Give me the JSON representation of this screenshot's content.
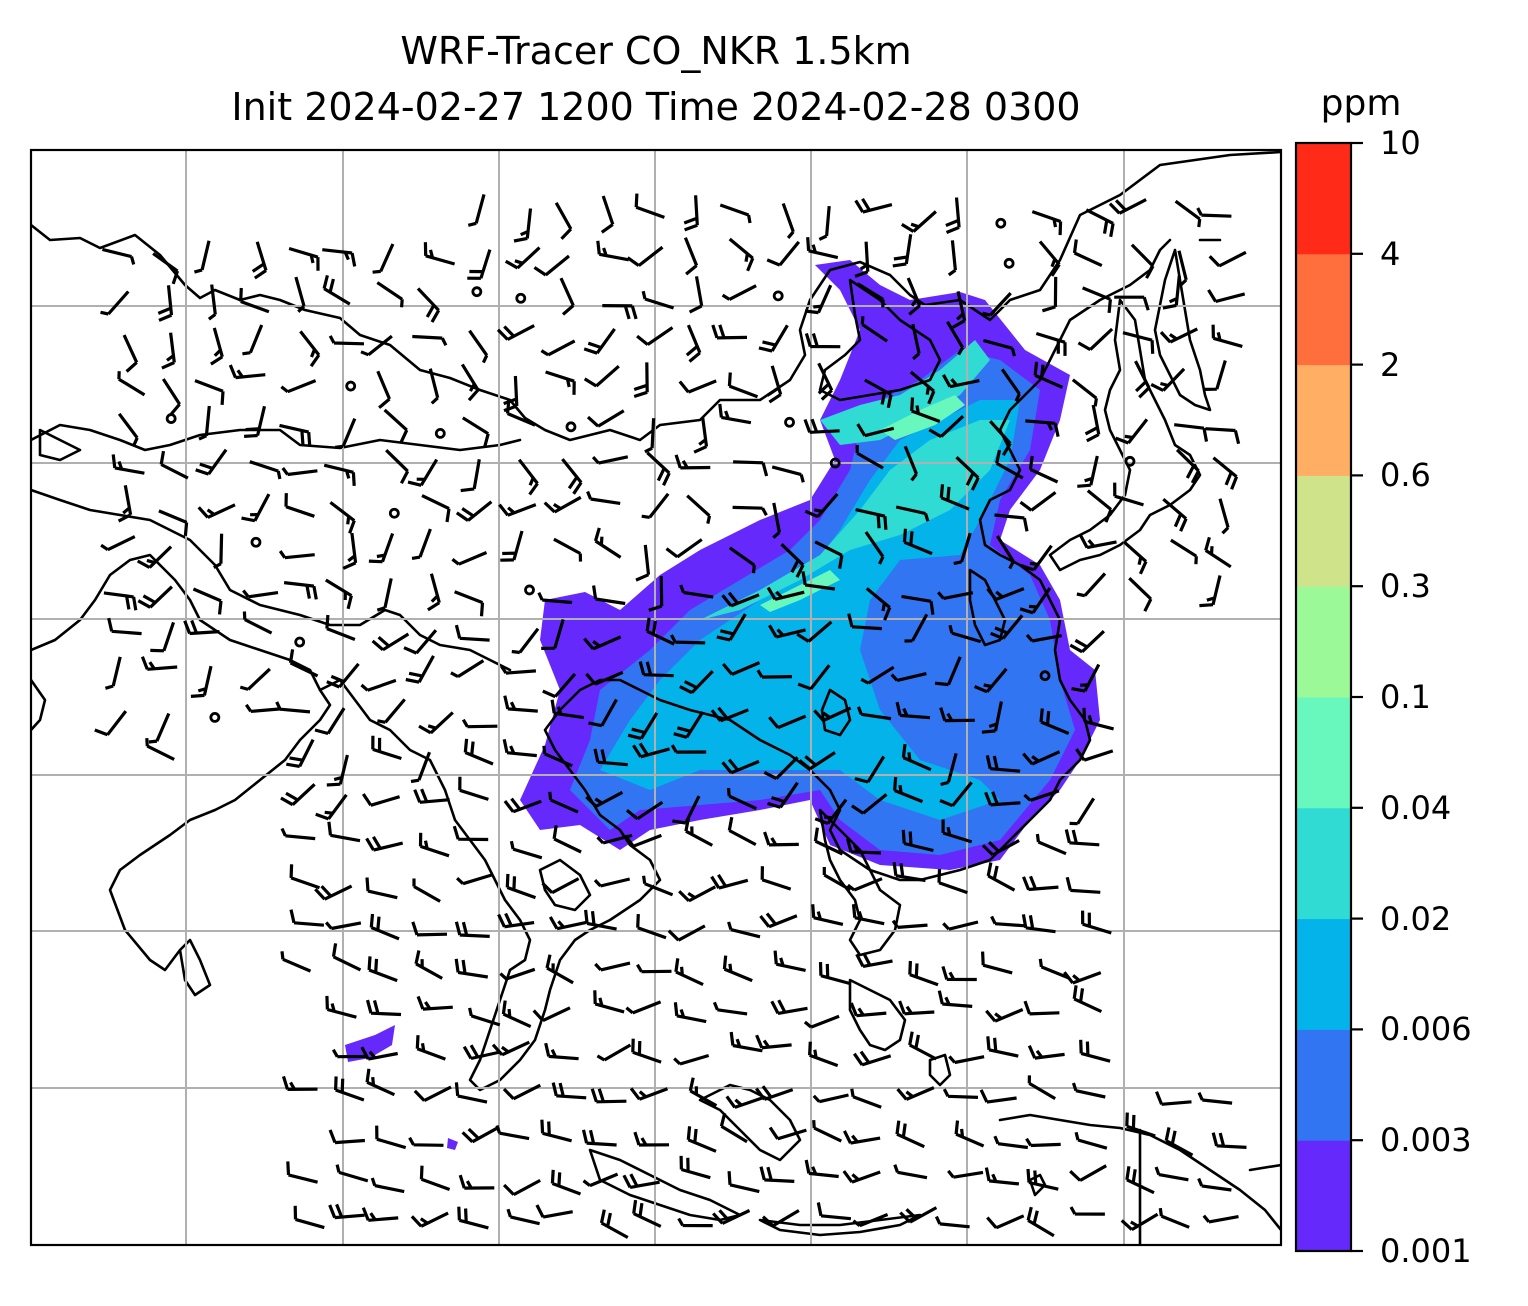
{
  "title": {
    "line1": "WRF-Tracer CO_NKR 1.5km",
    "line2": "Init 2024-02-27 1200 Time 2024-02-28 0300"
  },
  "colorbar": {
    "unit": "ppm",
    "levels": [
      "0.001",
      "0.003",
      "0.006",
      "0.02",
      "0.04",
      "0.1",
      "0.3",
      "0.6",
      "2",
      "4",
      "10"
    ],
    "colors": [
      "#6629fc",
      "#3275f3",
      "#04b3ea",
      "#30dbd3",
      "#68f7bd",
      "#9cf998",
      "#cfe38a",
      "#ffae63",
      "#ff6e3d",
      "#ff2b18"
    ]
  },
  "map": {
    "gridlines": "on",
    "plume_colors": {
      "low": "#6629fc",
      "medium": "#3275f3",
      "high": "#04b3ea",
      "higher": "#30dbd3",
      "peak": "#68f7bd"
    }
  }
}
